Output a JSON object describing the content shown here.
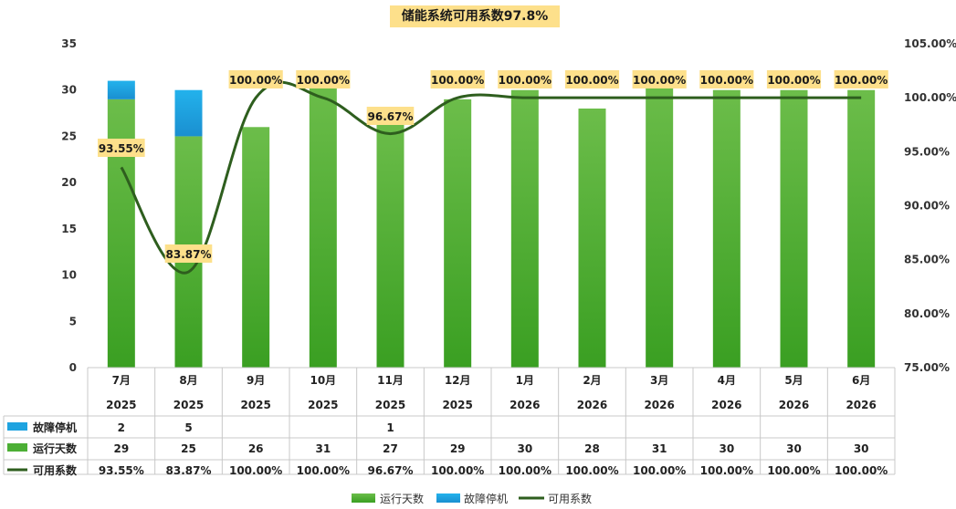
{
  "chart_data": {
    "type": "bar",
    "title": "储能系统可用系数97.8%",
    "categories": [
      {
        "month": "7月",
        "year": "2025"
      },
      {
        "month": "8月",
        "year": "2025"
      },
      {
        "month": "9月",
        "year": "2025"
      },
      {
        "month": "10月",
        "year": "2025"
      },
      {
        "month": "11月",
        "year": "2025"
      },
      {
        "month": "12月",
        "year": "2025"
      },
      {
        "month": "1月",
        "year": "2026"
      },
      {
        "month": "2月",
        "year": "2026"
      },
      {
        "month": "3月",
        "year": "2026"
      },
      {
        "month": "4月",
        "year": "2026"
      },
      {
        "month": "5月",
        "year": "2026"
      },
      {
        "month": "6月",
        "year": "2026"
      }
    ],
    "series": [
      {
        "name": "运行天数",
        "type": "bar",
        "axis": "left",
        "color": "#4caf35",
        "values": [
          29,
          25,
          26,
          31,
          27,
          29,
          30,
          28,
          31,
          30,
          30,
          30
        ],
        "labels": [
          "29",
          "25",
          "26",
          "31",
          "27",
          "29",
          "30",
          "28",
          "31",
          "30",
          "30",
          "30"
        ]
      },
      {
        "name": "故障停机",
        "type": "bar",
        "axis": "left",
        "color": "#1ea3e0",
        "values": [
          2,
          5,
          null,
          null,
          1,
          null,
          null,
          null,
          null,
          null,
          null,
          null
        ],
        "labels": [
          "2",
          "5",
          "",
          "",
          "1",
          "",
          "",
          "",
          "",
          "",
          "",
          ""
        ]
      },
      {
        "name": "可用系数",
        "type": "line",
        "axis": "right",
        "color": "#2e5e1e",
        "values": [
          93.55,
          83.87,
          100.0,
          100.0,
          96.67,
          100.0,
          100.0,
          100.0,
          100.0,
          100.0,
          100.0,
          100.0
        ],
        "labels": [
          "93.55%",
          "83.87%",
          "100.00%",
          "100.00%",
          "96.67%",
          "100.00%",
          "100.00%",
          "100.00%",
          "100.00%",
          "100.00%",
          "100.00%",
          "100.00%"
        ]
      }
    ],
    "y_left": {
      "min": 0,
      "max": 35,
      "ticks": [
        "0",
        "5",
        "10",
        "15",
        "20",
        "25",
        "30",
        "35"
      ]
    },
    "y_right": {
      "min": 75,
      "max": 105,
      "ticks": [
        "75.00%",
        "80.00%",
        "85.00%",
        "90.00%",
        "95.00%",
        "100.00%",
        "105.00%"
      ]
    },
    "data_table_rows": [
      "故障停机",
      "运行天数",
      "可用系数"
    ],
    "legend": {
      "position": "bottom",
      "items": [
        "运行天数",
        "故障停机",
        "可用系数"
      ]
    },
    "grid": false
  }
}
